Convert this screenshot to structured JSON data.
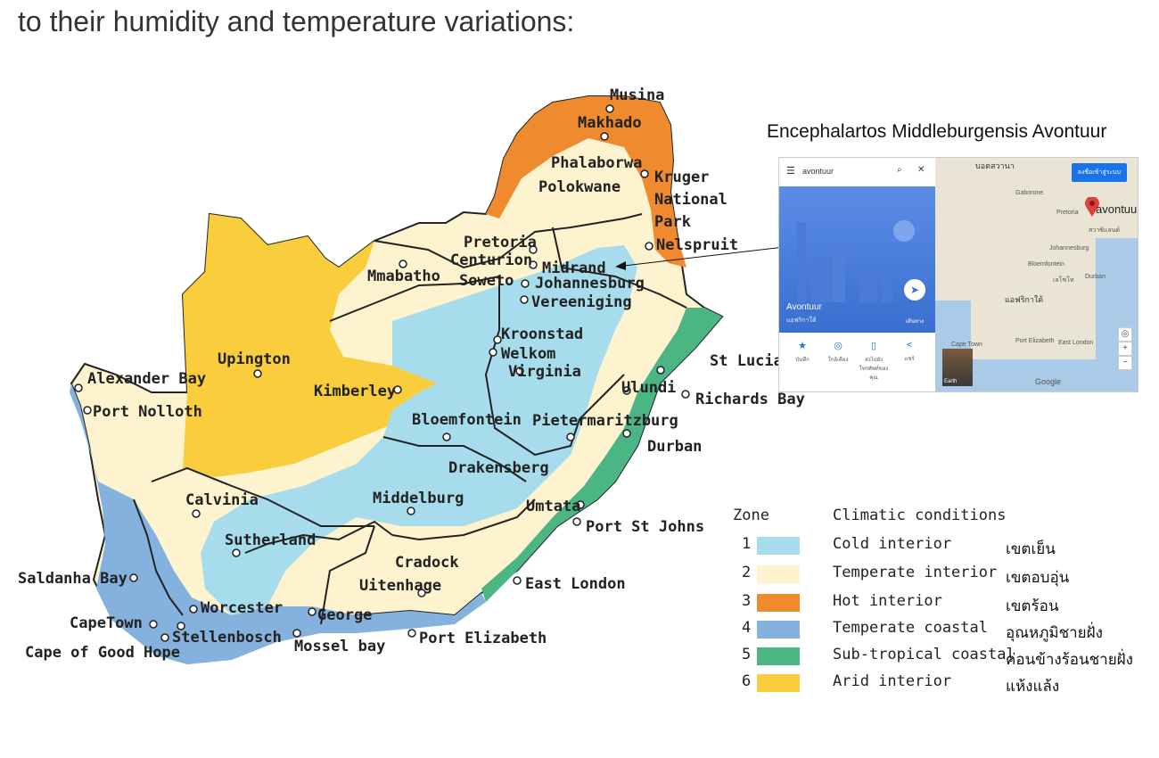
{
  "heading": "to their humidity and temperature variations:",
  "colors": {
    "cold_interior": "#a6dceb",
    "temperate_interior": "#fdf3cf",
    "hot_interior": "#f08a2e",
    "temperate_coastal": "#84b1dd",
    "subtropical_coastal": "#4cb584",
    "arid_interior": "#f9cd3c"
  },
  "map": {
    "cities": [
      {
        "id": "musina",
        "label": "Musina"
      },
      {
        "id": "makhado",
        "label": "Makhado"
      },
      {
        "id": "phalaborwa",
        "label": "Phalaborwa"
      },
      {
        "id": "polokwane",
        "label": "Polokwane"
      },
      {
        "id": "kruger1",
        "label": "Kruger"
      },
      {
        "id": "kruger2",
        "label": "National"
      },
      {
        "id": "kruger3",
        "label": "Park"
      },
      {
        "id": "nelspruit",
        "label": "Nelspruit"
      },
      {
        "id": "pretoria",
        "label": "Pretoria"
      },
      {
        "id": "centurion",
        "label": "Centurion"
      },
      {
        "id": "midrand",
        "label": "Midrand"
      },
      {
        "id": "johannesburg",
        "label": "Johannesburg"
      },
      {
        "id": "soweto",
        "label": "Soweto"
      },
      {
        "id": "mmabatho",
        "label": "Mmabatho"
      },
      {
        "id": "vereeniging",
        "label": "Vereeniging"
      },
      {
        "id": "kroonstad",
        "label": "Kroonstad"
      },
      {
        "id": "welkom",
        "label": "Welkom"
      },
      {
        "id": "virginia",
        "label": "Virginia"
      },
      {
        "id": "upington",
        "label": "Upington"
      },
      {
        "id": "kimberley",
        "label": "Kimberley"
      },
      {
        "id": "stlucia",
        "label": "St Lucia"
      },
      {
        "id": "ulundi",
        "label": "Ulundi"
      },
      {
        "id": "richardsbay",
        "label": "Richards Bay"
      },
      {
        "id": "alexanderbay",
        "label": "Alexander Bay"
      },
      {
        "id": "portnolloth",
        "label": "Port Nolloth"
      },
      {
        "id": "bloemfontein",
        "label": "Bloemfontein"
      },
      {
        "id": "pietermaritzburg",
        "label": "Pietermaritzburg"
      },
      {
        "id": "durban",
        "label": "Durban"
      },
      {
        "id": "drakensberg",
        "label": "Drakensberg"
      },
      {
        "id": "calvinia",
        "label": "Calvinia"
      },
      {
        "id": "middelburg",
        "label": "Middelburg"
      },
      {
        "id": "umtata",
        "label": "Umtata"
      },
      {
        "id": "portstjohns",
        "label": "Port St Johns"
      },
      {
        "id": "sutherland",
        "label": "Sutherland"
      },
      {
        "id": "cradock",
        "label": "Cradock"
      },
      {
        "id": "saldanhabay",
        "label": "Saldanha Bay"
      },
      {
        "id": "eastlondon",
        "label": "East London"
      },
      {
        "id": "uitenhage",
        "label": "Uitenhage"
      },
      {
        "id": "worcester",
        "label": "Worcester"
      },
      {
        "id": "george",
        "label": "George"
      },
      {
        "id": "capetown",
        "label": "CapeTown"
      },
      {
        "id": "stellenbosch",
        "label": "Stellenbosch"
      },
      {
        "id": "portelizabeth",
        "label": "Port Elizabeth"
      },
      {
        "id": "capegoodhope",
        "label": "Cape of Good Hope"
      },
      {
        "id": "mosselbay",
        "label": "Mossel bay"
      }
    ]
  },
  "inset": {
    "title": "Encephalartos Middleburgensis Avontuur",
    "search_value": "avontuur",
    "place_name": "Avontuur",
    "place_country": "แอฟริกาใต้",
    "directions_label": "เส้นทาง",
    "signin_label": "ลงชื่อเข้าสู่ระบบ",
    "pin_label": "avontuur",
    "actions": [
      {
        "label": "บันทึก"
      },
      {
        "label": "ใกล้เคียง"
      },
      {
        "label": "ส่งไปยังโทรศัพท์ของคุณ"
      },
      {
        "label": "แชร์"
      }
    ],
    "map_labels": {
      "botswana": "บอตสวานา",
      "gaborone": "Gaborone",
      "pretoria": "Pretoria",
      "johannesburg": "Johannesburg",
      "bloemfontein": "Bloemfontein",
      "south_africa": "แอฟริกาใต้",
      "capetown": "Cape Town",
      "port_elizabeth": "Port Elizabeth",
      "east_london": "East London",
      "durban": "Durban",
      "lesotho": "เลโซโท",
      "eswatini": "สวาซิแลนด์"
    },
    "earth_label": "Earth",
    "google_label": "Google"
  },
  "legend": {
    "zone_header": "Zone",
    "conditions_header": "Climatic conditions",
    "rows": [
      {
        "num": "1",
        "label": "Cold interior",
        "thai": "เขตเย็น",
        "color": "#a6dceb"
      },
      {
        "num": "2",
        "label": "Temperate interior",
        "thai": "เขตอบอุ่น",
        "color": "#fdf3cf"
      },
      {
        "num": "3",
        "label": "Hot interior",
        "thai": "เขตร้อน",
        "color": "#f08a2e"
      },
      {
        "num": "4",
        "label": "Temperate coastal",
        "thai": "อุณหภูมิชายฝั่ง",
        "color": "#84b1dd"
      },
      {
        "num": "5",
        "label": "Sub-tropical coastal",
        "thai": "ค่อนข้างร้อนชายฝั่ง",
        "color": "#4cb584"
      },
      {
        "num": "6",
        "label": "Arid interior",
        "thai": "แห้งแล้ง",
        "color": "#f9cd3c"
      }
    ]
  }
}
